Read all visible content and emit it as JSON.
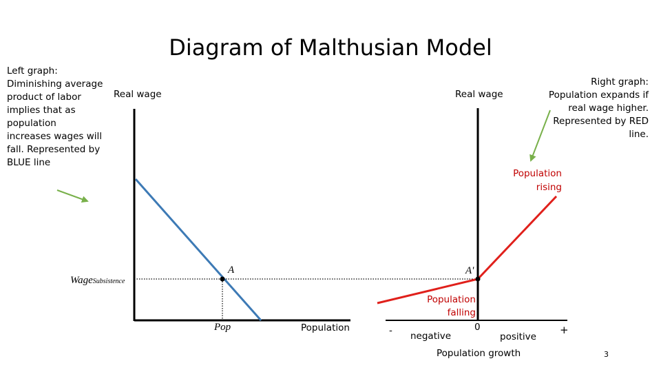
{
  "title": "Diagram of Malthusian Model",
  "left_note": "Left graph: Diminishing average product of labor implies that as population increases wages will fall. Represented by BLUE line",
  "right_note": "Right graph: Population expands if real wage higher. Represented by RED line.",
  "left_graph": {
    "y_label": "Real wage",
    "x_label": "Population",
    "subsistence_label": "Wage",
    "subsistence_subscript": "Subsistence",
    "point_label": "A",
    "x_marker": "Pop"
  },
  "right_graph": {
    "y_label": "Real wage",
    "x_label": "Population growth",
    "point_label": "A'",
    "rising_label_1": "Population",
    "rising_label_2": "rising",
    "falling_label_1": "Population",
    "falling_label_2": "falling",
    "minus_sign": "-",
    "plus_sign": "+",
    "negative_label": "negative",
    "zero_label": "0",
    "positive_label": "positive"
  },
  "slide_number": "3",
  "colors": {
    "blue_line": "#3d7ab5",
    "red_line": "#e0201b",
    "arrow": "#78b04a",
    "axis": "#000000"
  }
}
